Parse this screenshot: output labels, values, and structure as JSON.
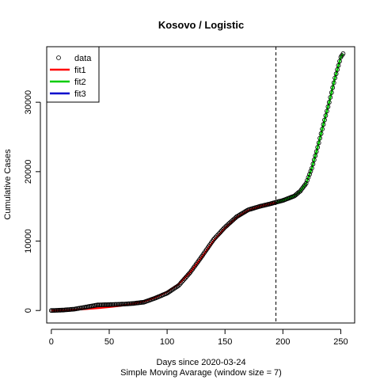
{
  "chart_data": {
    "type": "scatter",
    "title": "Kosovo / Logistic",
    "xlabel": "Days since 2020-03-24",
    "xlabel_sub": "Simple Moving Avarage (window size = 7)",
    "ylabel": "Cumulative Cases",
    "xlim": [
      -4,
      262
    ],
    "ylim": [
      -1800,
      38000
    ],
    "x_ticks": [
      0,
      50,
      100,
      150,
      200,
      250
    ],
    "y_ticks": [
      0,
      10000,
      20000,
      30000
    ],
    "vline_x": 194,
    "grid": false,
    "legend_position": "top-left",
    "legend": [
      {
        "label": "data",
        "kind": "point"
      },
      {
        "label": "fit1",
        "kind": "line",
        "color": "#ff0000"
      },
      {
        "label": "fit2",
        "kind": "line",
        "color": "#00cc00"
      },
      {
        "label": "fit3",
        "kind": "line",
        "color": "#0000cc"
      }
    ],
    "data_anchors": {
      "x": [
        0,
        10,
        20,
        30,
        40,
        50,
        60,
        70,
        80,
        90,
        100,
        110,
        120,
        130,
        140,
        150,
        160,
        170,
        180,
        190,
        194,
        200,
        210,
        215,
        220,
        225,
        230,
        235,
        240,
        245,
        250,
        252
      ],
      "y": [
        0,
        60,
        200,
        500,
        800,
        850,
        900,
        1000,
        1200,
        1800,
        2500,
        3600,
        5500,
        7800,
        10200,
        12000,
        13500,
        14500,
        15000,
        15400,
        15600,
        15850,
        16500,
        17200,
        18300,
        20500,
        23500,
        26800,
        30000,
        33500,
        36500,
        37000
      ]
    },
    "series": [
      {
        "name": "fit1",
        "color": "#ff0000",
        "x": [
          0,
          10,
          20,
          30,
          40,
          50,
          60,
          70,
          80,
          90,
          100,
          110,
          120,
          130,
          140,
          150,
          160,
          170,
          180,
          190,
          194
        ],
        "y": [
          0,
          40,
          100,
          220,
          350,
          500,
          700,
          950,
          1300,
          1900,
          2700,
          3800,
          5500,
          7700,
          10000,
          11900,
          13400,
          14400,
          15000,
          15400,
          15550
        ]
      },
      {
        "name": "fit2",
        "color": "#00cc00",
        "x": [
          194,
          200,
          210,
          215,
          220,
          225,
          230,
          235,
          240,
          245,
          250,
          252
        ],
        "y": [
          15550,
          15850,
          16500,
          17200,
          18300,
          20500,
          23500,
          26800,
          30000,
          33500,
          36500,
          37000
        ]
      }
    ]
  }
}
